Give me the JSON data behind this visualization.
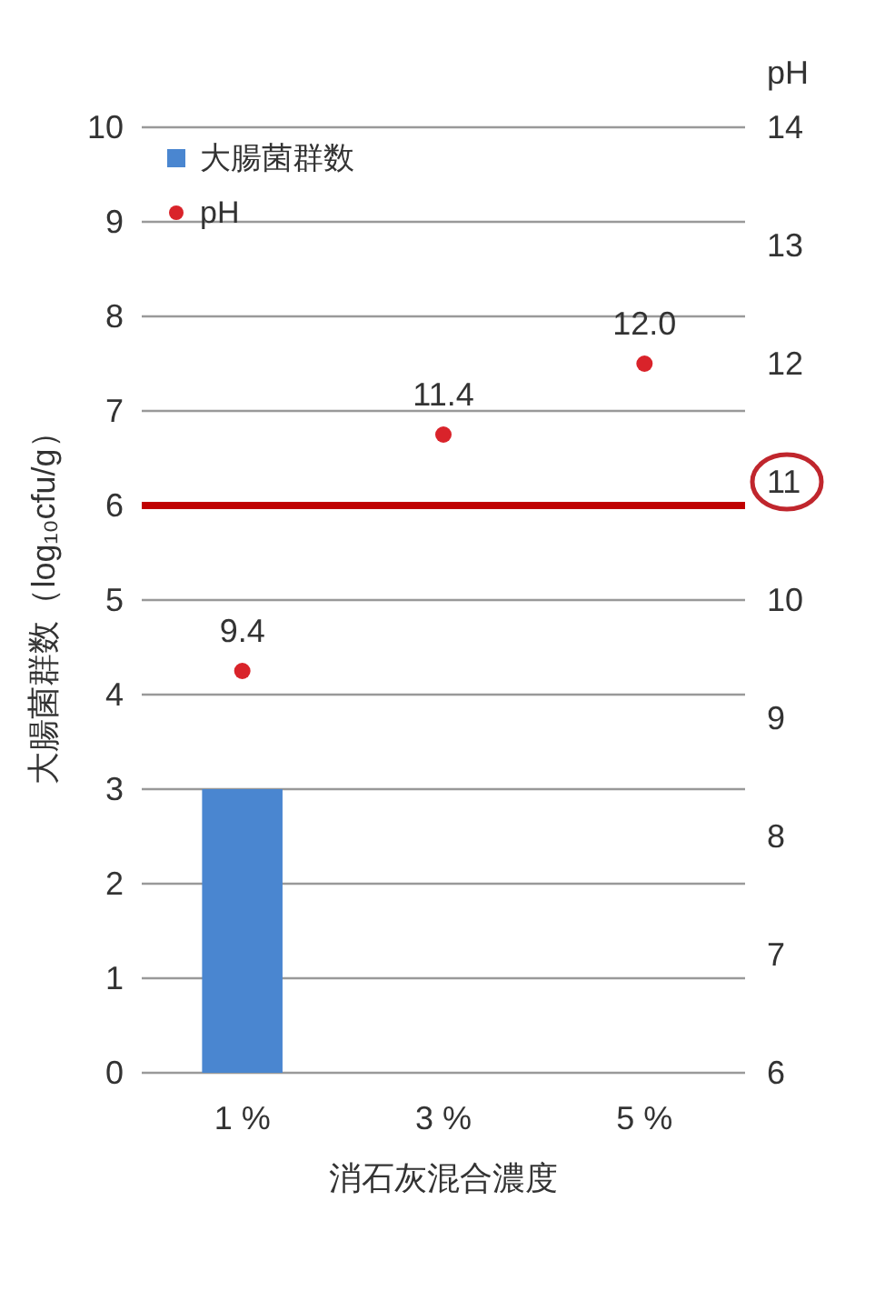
{
  "chart_data": {
    "type": "bar",
    "xlabel": "消石灰混合濃度",
    "ylabel": "大腸菌群数（log₁₀cfu/g）",
    "y2label": "pH",
    "categories": [
      "1 %",
      "3 %",
      "5 %"
    ],
    "series": [
      {
        "name": "大腸菌群数",
        "color": "#4a86d0",
        "values": [
          3,
          null,
          null
        ]
      },
      {
        "name": "pH",
        "type": "scatter",
        "axis": "y2",
        "color": "#d9232a",
        "values": [
          9.4,
          11.4,
          12.0
        ],
        "value_labels": [
          "9.4",
          "11.4",
          "12.0"
        ]
      }
    ],
    "ylim": [
      0,
      10
    ],
    "yticks": [
      0,
      1,
      2,
      3,
      4,
      5,
      6,
      7,
      8,
      9,
      10
    ],
    "y2lim": [
      6,
      14
    ],
    "y2ticks": [
      6,
      7,
      8,
      9,
      10,
      11,
      12,
      13,
      14
    ],
    "grid": "y",
    "legend": "top left",
    "marker": "circle",
    "ref_lines": [
      {
        "axis": "y",
        "value": 6,
        "color": "#c00000"
      }
    ]
  }
}
